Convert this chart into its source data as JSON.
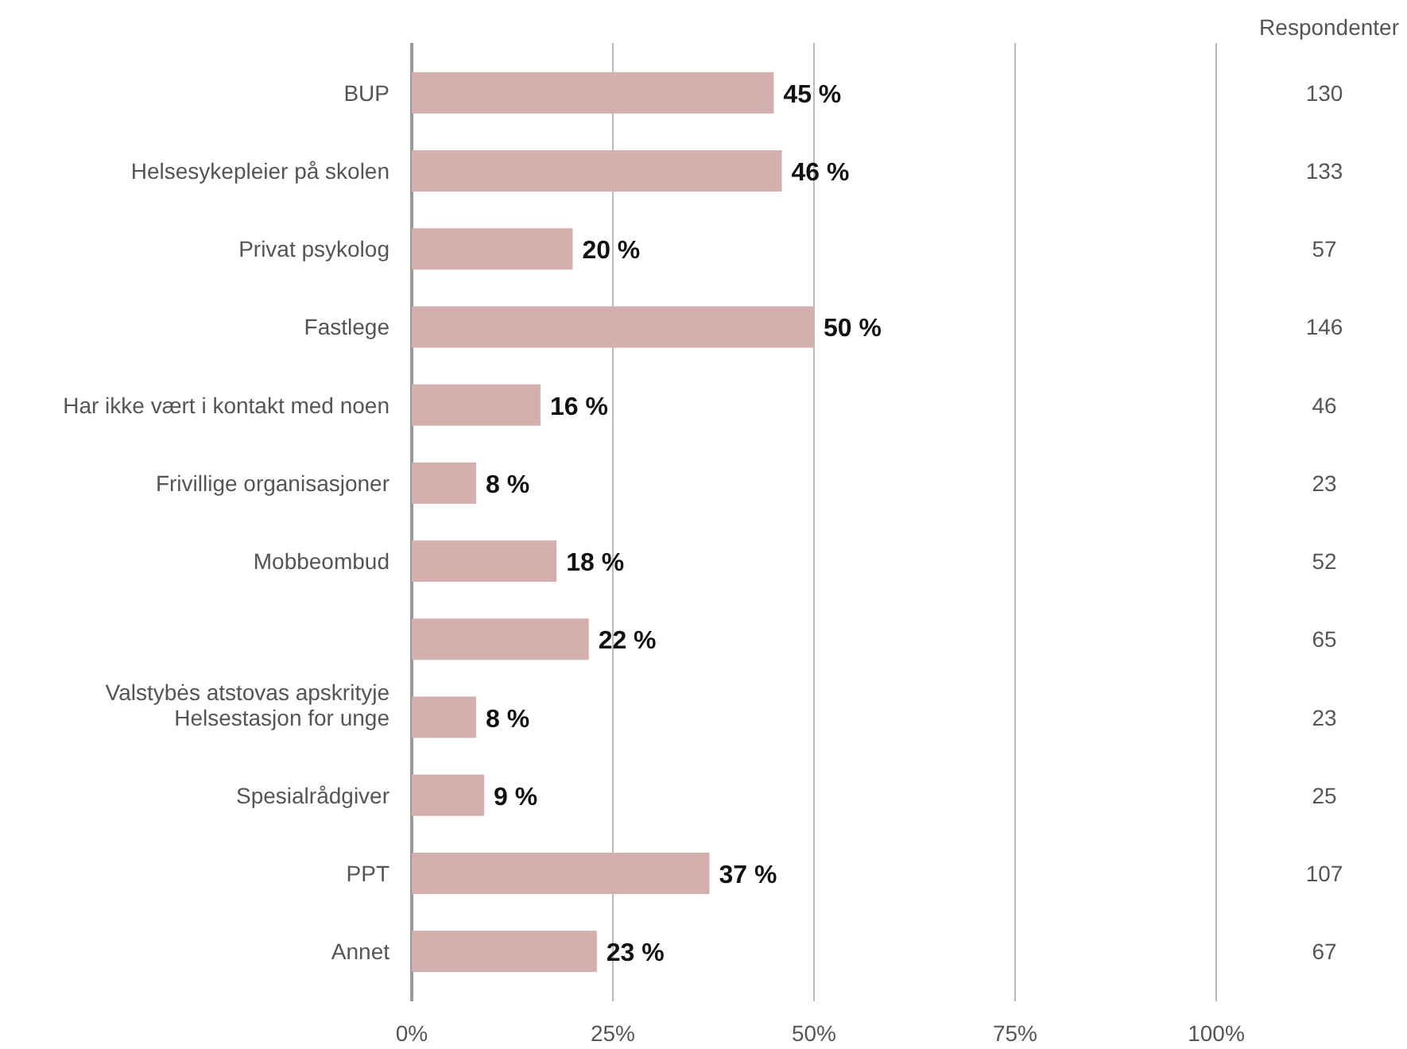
{
  "chart_data": {
    "type": "bar",
    "orientation": "horizontal",
    "categories": [
      "BUP",
      "Helsesykepleier på skolen",
      "Privat psykolog",
      "Fastlege",
      "Har ikke vært i kontakt med noen",
      "Frivillige organisasjoner",
      "Mobbeombud",
      null,
      "Helsestasjon for unge",
      "Spesialrådgiver",
      "PPT",
      "Annet"
    ],
    "series": [
      {
        "color": "#d3b0ad",
        "values": [
          45,
          46,
          20,
          50,
          16,
          8,
          18,
          22,
          8,
          9,
          37,
          23
        ],
        "value_labels": [
          "45 %",
          "46 %",
          "20 %",
          "50 %",
          "16 %",
          "8 %",
          "18 %",
          "22 %",
          "8 %",
          "9 %",
          "37 %",
          "23 %"
        ]
      }
    ],
    "xlim": [
      0,
      100
    ],
    "xticks": [
      {
        "value": 0,
        "label": "0%"
      },
      {
        "value": 25,
        "label": "25%"
      },
      {
        "value": 50,
        "label": "50%"
      },
      {
        "value": 75,
        "label": "75%"
      },
      {
        "value": 100,
        "label": "100%"
      }
    ],
    "grid": "x",
    "annotations": [
      "Valstybės atstovas apskrityje",
      "Respondenter",
      "130",
      "133",
      "57",
      "146",
      "46",
      "23",
      "52",
      "65",
      "23",
      "25",
      "107",
      "67"
    ]
  }
}
